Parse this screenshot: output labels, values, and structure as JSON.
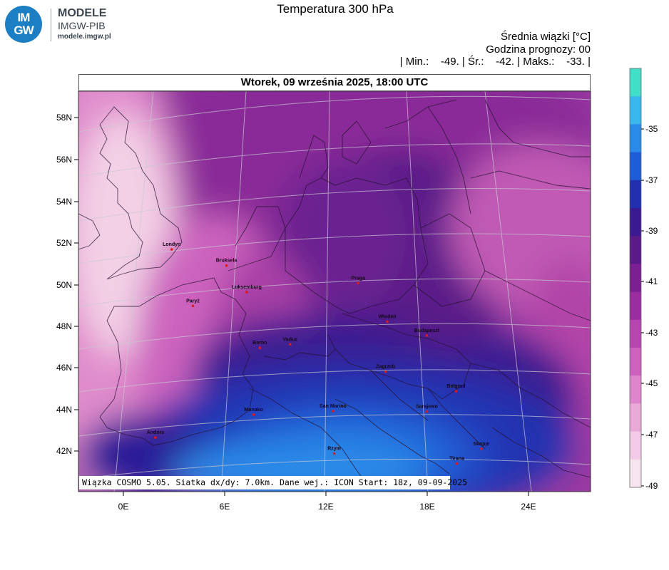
{
  "logo": {
    "circle_line1": "IM",
    "circle_line2": "GW",
    "name": "MODELE",
    "org": "IMGW-PIB",
    "url": "modele.imgw.pl"
  },
  "title": "Temperatura 300 hPa",
  "info": {
    "line1": "Średnia wiązki [°C]",
    "line2": "Godzina prognozy: 00",
    "line3": "| Min.:    -49. | Śr.:    -42. | Maks.:    -33. |"
  },
  "date_label": "Wtorek, 09 września 2025, 18:00 UTC",
  "footer": "Wiązka COSMO 5.05. Siatka dx/dy: 7.0km. Dane wej.: ICON Start: 18z, 09-09-2025",
  "lat_labels": [
    "58N",
    "56N",
    "54N",
    "52N",
    "50N",
    "48N",
    "46N",
    "44N",
    "42N"
  ],
  "lon_labels": [
    "0E",
    "6E",
    "12E",
    "18E",
    "24E"
  ],
  "colorbar": {
    "labels": [
      "-35",
      "-37",
      "-39",
      "-41",
      "-43",
      "-45",
      "-47",
      "-49"
    ],
    "colors": [
      "#40e0c8",
      "#3ab8ee",
      "#2a8ae8",
      "#1f5cd8",
      "#2230b0",
      "#3a1a90",
      "#5a1a88",
      "#7a2090",
      "#9a2e9e",
      "#b646ae",
      "#cc62be",
      "#de86cc",
      "#eaaad8",
      "#f2cce6",
      "#f6e4ef"
    ]
  },
  "cities": [
    {
      "name": "Londyn",
      "lon": -0.1,
      "lat": 51.5
    },
    {
      "name": "Bruksela",
      "lon": 4.35,
      "lat": 50.85
    },
    {
      "name": "Paryż",
      "lon": 2.35,
      "lat": 48.86
    },
    {
      "name": "Luksemburg",
      "lon": 6.13,
      "lat": 49.61
    },
    {
      "name": "Praga",
      "lon": 14.42,
      "lat": 50.08
    },
    {
      "name": "Wiedeń",
      "lon": 16.37,
      "lat": 48.21
    },
    {
      "name": "Budapeszt",
      "lon": 19.04,
      "lat": 47.5
    },
    {
      "name": "Berno",
      "lon": 7.45,
      "lat": 46.95
    },
    {
      "name": "Vaduz",
      "lon": 9.52,
      "lat": 47.14
    },
    {
      "name": "Zagrzeb",
      "lon": 15.98,
      "lat": 45.81
    },
    {
      "name": "Belgrad",
      "lon": 20.46,
      "lat": 44.79
    },
    {
      "name": "Sarajewo",
      "lon": 18.41,
      "lat": 43.86
    },
    {
      "name": "Monako",
      "lon": 7.42,
      "lat": 43.74
    },
    {
      "name": "San Marino",
      "lon": 12.45,
      "lat": 43.94
    },
    {
      "name": "Andora",
      "lon": 1.52,
      "lat": 42.51
    },
    {
      "name": "Skopje",
      "lon": 21.43,
      "lat": 42.0
    },
    {
      "name": "Rzym",
      "lon": 12.5,
      "lat": 41.9
    },
    {
      "name": "Tirana",
      "lon": 19.82,
      "lat": 41.33
    }
  ]
}
